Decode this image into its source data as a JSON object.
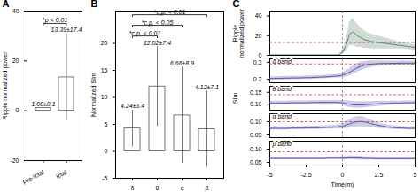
{
  "chart_data": [
    {
      "type": "bar",
      "title": "A",
      "categories": [
        "Pre-Ictal",
        "Ictal"
      ],
      "values": [
        1.08,
        13.39
      ],
      "errors": [
        0.1,
        17.4
      ],
      "color": "white",
      "ylabel": "Ripple normalized power",
      "ylim": [
        -20,
        40
      ],
      "yticks": [
        -20,
        0,
        20,
        40
      ],
      "data_labels": true,
      "value_labels": [
        "1.08±0.1",
        "13.39±17.4"
      ],
      "annotations": [
        {
          "text": "*p < 0.01",
          "x1": "Pre-Ictal",
          "x2": "Ictal"
        }
      ]
    },
    {
      "type": "bar",
      "title": "B",
      "categories": [
        "δ",
        "θ",
        "α",
        "β"
      ],
      "values": [
        4.24,
        12.02,
        6.66,
        4.12
      ],
      "errors": [
        3.4,
        7.4,
        8.9,
        7.1
      ],
      "color": "white",
      "ylabel": "Normalized SIm",
      "ylim": [
        -5,
        26
      ],
      "yticks": [
        -5,
        0,
        5,
        10,
        15,
        20
      ],
      "data_labels": true,
      "value_labels": [
        "4.24±3.4",
        "12.02±7.4",
        "6.66±8.9",
        "4.12±7.1"
      ],
      "annotations": [
        {
          "text": "*c.p. < 0.01",
          "x1": "δ",
          "x2": "θ"
        },
        {
          "text": "*c.p. < 0.05",
          "x1": "δ",
          "x2": "α"
        },
        {
          "text": "*c.p. < 0.01",
          "x1": "δ",
          "x2": "β"
        }
      ]
    },
    {
      "type": "line",
      "title": "C",
      "x": [
        -5.0,
        -4.75,
        -4.5,
        -4.25,
        -4.0,
        -3.75,
        -3.5,
        -3.25,
        -3.0,
        -2.75,
        -2.5,
        -2.25,
        -2.0,
        -1.75,
        -1.5,
        -1.25,
        -1.0,
        -0.75,
        -0.5,
        -0.25,
        0.0,
        0.25,
        0.5,
        0.75,
        1.0,
        1.25,
        1.5,
        1.75,
        2.0,
        2.25,
        2.5,
        2.75,
        3.0,
        3.25,
        3.5,
        3.75,
        4.0,
        4.25,
        4.5,
        4.75,
        5.0
      ],
      "values": [
        0.4,
        0.4,
        0.4,
        0.4,
        0.4,
        0.4,
        0.4,
        0.4,
        0.4,
        0.4,
        0.4,
        0.4,
        0.4,
        0.4,
        0.4,
        0.4,
        0.4,
        0.4,
        0.4,
        0.5,
        3.0,
        10.0,
        22.0,
        24.0,
        20.0,
        18.0,
        16.0,
        15.0,
        14.0,
        13.5,
        13.0,
        12.5,
        12.0,
        11.5,
        11.0,
        10.5,
        10.0,
        9.5,
        9.0,
        8.5,
        8.0
      ],
      "std": [
        0.2,
        0.2,
        0.2,
        0.2,
        0.2,
        0.2,
        0.2,
        0.2,
        0.2,
        0.2,
        0.2,
        0.2,
        0.2,
        0.2,
        0.2,
        0.2,
        0.2,
        0.2,
        0.2,
        0.3,
        2.0,
        6.0,
        12.0,
        14.0,
        12.0,
        10.0,
        9.0,
        8.0,
        7.5,
        7.0,
        6.5,
        6.0,
        5.5,
        5.0,
        4.5,
        4.0,
        3.5,
        3.2,
        3.0,
        2.8,
        2.8
      ],
      "color": "#5a8a72",
      "ylabel": "Ripple\nnormalized power",
      "xlim": [
        -5,
        5
      ],
      "ylim": [
        0,
        45
      ],
      "yticks": [
        0,
        20,
        40
      ],
      "tick_labels": "y",
      "annotations": [
        {
          "y": 13.0,
          "color": "#cc4444",
          "line_style": "dashed"
        },
        {
          "x": 0,
          "color": "#888888",
          "line_style": "dashed"
        }
      ]
    },
    {
      "type": "line",
      "x": [
        -5.0,
        -4.75,
        -4.5,
        -4.25,
        -4.0,
        -3.75,
        -3.5,
        -3.25,
        -3.0,
        -2.75,
        -2.5,
        -2.25,
        -2.0,
        -1.75,
        -1.5,
        -1.25,
        -1.0,
        -0.75,
        -0.5,
        -0.25,
        0.0,
        0.25,
        0.5,
        0.75,
        1.0,
        1.25,
        1.5,
        1.75,
        2.0,
        2.25,
        2.5,
        2.75,
        3.0,
        3.25,
        3.5,
        3.75,
        4.0,
        4.25,
        4.5,
        4.75,
        5.0
      ],
      "values": [
        0.205,
        0.205,
        0.206,
        0.206,
        0.207,
        0.207,
        0.208,
        0.208,
        0.208,
        0.209,
        0.21,
        0.21,
        0.211,
        0.212,
        0.213,
        0.214,
        0.215,
        0.217,
        0.218,
        0.22,
        0.225,
        0.232,
        0.242,
        0.255,
        0.267,
        0.276,
        0.282,
        0.287,
        0.289,
        0.291,
        0.292,
        0.293,
        0.293,
        0.294,
        0.294,
        0.294,
        0.295,
        0.295,
        0.295,
        0.295,
        0.295
      ],
      "std": [
        0.01,
        0.01,
        0.01,
        0.01,
        0.01,
        0.01,
        0.01,
        0.01,
        0.01,
        0.01,
        0.01,
        0.01,
        0.01,
        0.01,
        0.01,
        0.01,
        0.01,
        0.01,
        0.01,
        0.012,
        0.015,
        0.018,
        0.022,
        0.025,
        0.026,
        0.025,
        0.023,
        0.021,
        0.019,
        0.017,
        0.016,
        0.015,
        0.014,
        0.014,
        0.013,
        0.013,
        0.013,
        0.013,
        0.012,
        0.012,
        0.012
      ],
      "color": "#5555aa",
      "xlim": [
        -5,
        5
      ],
      "ylim": [
        0.18,
        0.32
      ],
      "yticks": [
        0.2,
        0.3
      ],
      "tick_labels": "y",
      "annotations": [
        {
          "text": "δ band"
        },
        {
          "y": 0.29,
          "color": "#cc4444",
          "line_style": "dashed"
        },
        {
          "x": 0,
          "color": "#888888",
          "line_style": "dashed"
        }
      ]
    },
    {
      "type": "line",
      "x": [
        -5.0,
        -4.75,
        -4.5,
        -4.25,
        -4.0,
        -3.75,
        -3.5,
        -3.25,
        -3.0,
        -2.75,
        -2.5,
        -2.25,
        -2.0,
        -1.75,
        -1.5,
        -1.25,
        -1.0,
        -0.75,
        -0.5,
        -0.25,
        0.0,
        0.25,
        0.5,
        0.75,
        1.0,
        1.25,
        1.5,
        1.75,
        2.0,
        2.25,
        2.5,
        2.75,
        3.0,
        3.25,
        3.5,
        3.75,
        4.0,
        4.25,
        4.5,
        4.75,
        5.0
      ],
      "values": [
        0.105,
        0.105,
        0.105,
        0.105,
        0.105,
        0.105,
        0.106,
        0.106,
        0.106,
        0.106,
        0.106,
        0.107,
        0.107,
        0.107,
        0.108,
        0.108,
        0.108,
        0.108,
        0.108,
        0.107,
        0.106,
        0.103,
        0.1,
        0.098,
        0.097,
        0.097,
        0.098,
        0.099,
        0.1,
        0.101,
        0.102,
        0.103,
        0.103,
        0.104,
        0.105,
        0.105,
        0.105,
        0.106,
        0.106,
        0.106,
        0.106
      ],
      "std": [
        0.008,
        0.008,
        0.008,
        0.008,
        0.008,
        0.008,
        0.008,
        0.008,
        0.008,
        0.008,
        0.008,
        0.008,
        0.008,
        0.008,
        0.008,
        0.008,
        0.008,
        0.008,
        0.009,
        0.009,
        0.01,
        0.012,
        0.013,
        0.014,
        0.014,
        0.013,
        0.013,
        0.012,
        0.011,
        0.011,
        0.01,
        0.01,
        0.009,
        0.009,
        0.009,
        0.008,
        0.008,
        0.008,
        0.008,
        0.008,
        0.008
      ],
      "color": "#5555aa",
      "ylabel": "SIm",
      "xlim": [
        -5,
        5
      ],
      "ylim": [
        0.075,
        0.175
      ],
      "yticks": [
        {
          "value": 0.1,
          "label": "0.10"
        },
        0.15
      ],
      "tick_labels": "y",
      "annotations": [
        {
          "text": "θ band"
        },
        {
          "y": 0.14,
          "color": "#cc4444",
          "line_style": "dashed"
        },
        {
          "x": 0,
          "color": "#888888",
          "line_style": "dashed"
        }
      ]
    },
    {
      "type": "line",
      "x": [
        -5.0,
        -4.75,
        -4.5,
        -4.25,
        -4.0,
        -3.75,
        -3.5,
        -3.25,
        -3.0,
        -2.75,
        -2.5,
        -2.25,
        -2.0,
        -1.75,
        -1.5,
        -1.25,
        -1.0,
        -0.75,
        -0.5,
        -0.25,
        0.0,
        0.25,
        0.5,
        0.75,
        1.0,
        1.25,
        1.5,
        1.75,
        2.0,
        2.25,
        2.5,
        2.75,
        3.0,
        3.25,
        3.5,
        3.75,
        4.0,
        4.25,
        4.5,
        4.75,
        5.0
      ],
      "values": [
        0.075,
        0.075,
        0.075,
        0.075,
        0.075,
        0.075,
        0.076,
        0.076,
        0.076,
        0.076,
        0.077,
        0.077,
        0.077,
        0.077,
        0.078,
        0.078,
        0.079,
        0.079,
        0.08,
        0.081,
        0.083,
        0.087,
        0.092,
        0.097,
        0.1,
        0.101,
        0.099,
        0.096,
        0.092,
        0.089,
        0.086,
        0.083,
        0.081,
        0.079,
        0.078,
        0.077,
        0.076,
        0.076,
        0.075,
        0.075,
        0.075
      ],
      "std": [
        0.006,
        0.006,
        0.006,
        0.006,
        0.006,
        0.006,
        0.006,
        0.006,
        0.006,
        0.006,
        0.006,
        0.006,
        0.006,
        0.006,
        0.006,
        0.006,
        0.006,
        0.007,
        0.007,
        0.008,
        0.01,
        0.013,
        0.016,
        0.018,
        0.019,
        0.019,
        0.018,
        0.016,
        0.014,
        0.012,
        0.011,
        0.009,
        0.008,
        0.007,
        0.007,
        0.006,
        0.006,
        0.006,
        0.006,
        0.006,
        0.006
      ],
      "color": "#5555aa",
      "xlim": [
        -5,
        5
      ],
      "ylim": [
        0.04,
        0.13
      ],
      "yticks": [
        0.05,
        {
          "value": 0.1,
          "label": "0.10"
        }
      ],
      "tick_labels": "y",
      "annotations": [
        {
          "text": "α band"
        },
        {
          "y": 0.1,
          "color": "#cc4444",
          "line_style": "dashed"
        },
        {
          "x": 0,
          "color": "#888888",
          "line_style": "dashed"
        }
      ]
    },
    {
      "type": "line",
      "x": [
        -5.0,
        -4.75,
        -4.5,
        -4.25,
        -4.0,
        -3.75,
        -3.5,
        -3.25,
        -3.0,
        -2.75,
        -2.5,
        -2.25,
        -2.0,
        -1.75,
        -1.5,
        -1.25,
        -1.0,
        -0.75,
        -0.5,
        -0.25,
        0.0,
        0.25,
        0.5,
        0.75,
        1.0,
        1.25,
        1.5,
        1.75,
        2.0,
        2.25,
        2.5,
        2.75,
        3.0,
        3.25,
        3.5,
        3.75,
        4.0,
        4.25,
        4.5,
        4.75,
        5.0
      ],
      "values": [
        0.065,
        0.065,
        0.065,
        0.065,
        0.065,
        0.065,
        0.065,
        0.065,
        0.065,
        0.065,
        0.065,
        0.065,
        0.065,
        0.065,
        0.065,
        0.065,
        0.066,
        0.066,
        0.066,
        0.066,
        0.066,
        0.066,
        0.067,
        0.067,
        0.066,
        0.066,
        0.065,
        0.065,
        0.065,
        0.064,
        0.064,
        0.064,
        0.064,
        0.064,
        0.064,
        0.064,
        0.064,
        0.064,
        0.064,
        0.064,
        0.064
      ],
      "std": [
        0.005,
        0.005,
        0.005,
        0.005,
        0.005,
        0.005,
        0.005,
        0.005,
        0.005,
        0.005,
        0.005,
        0.005,
        0.005,
        0.005,
        0.005,
        0.005,
        0.005,
        0.005,
        0.005,
        0.005,
        0.006,
        0.006,
        0.007,
        0.007,
        0.007,
        0.007,
        0.006,
        0.006,
        0.006,
        0.006,
        0.005,
        0.005,
        0.005,
        0.005,
        0.005,
        0.005,
        0.005,
        0.005,
        0.005,
        0.005,
        0.005
      ],
      "color": "#5555aa",
      "xlabel": "Time(m)",
      "xlim": [
        -5,
        5
      ],
      "xticks": [
        -5,
        -2.5,
        0,
        2.5,
        5
      ],
      "ylim": [
        0.04,
        0.13
      ],
      "yticks": [
        0.05,
        {
          "value": 0.1,
          "label": "0.10"
        }
      ],
      "annotations": [
        {
          "text": "β band"
        },
        {
          "y": 0.09,
          "color": "#cc4444",
          "line_style": "dashed"
        },
        {
          "x": 0,
          "color": "#888888",
          "line_style": "dashed"
        }
      ]
    }
  ]
}
